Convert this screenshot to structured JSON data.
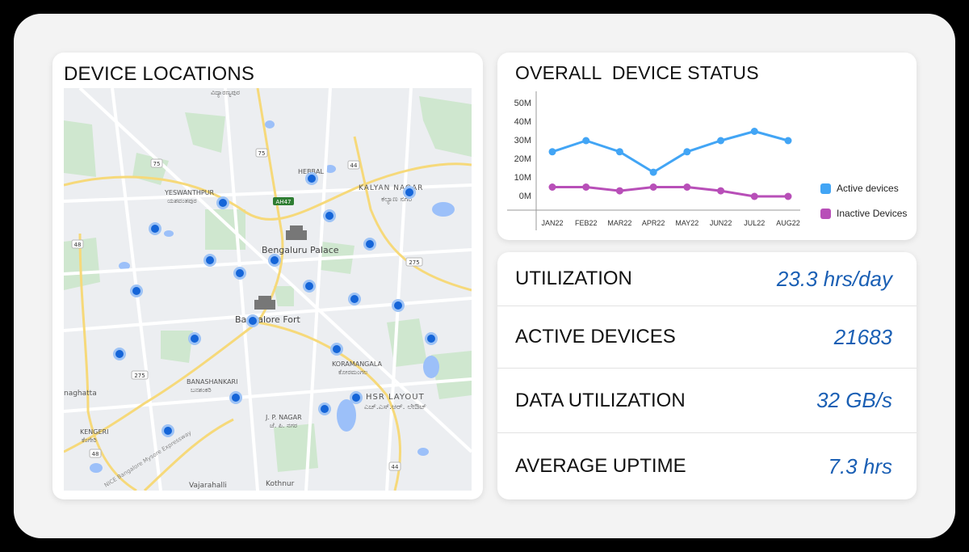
{
  "map": {
    "title": "DEVICE LOCATIONS",
    "labels": {
      "vidyaranyapura": "ವಿದ್ಯಾರಣ್ಯಪುರ",
      "hebbal": "HEBBAL",
      "kalyan_nagar": "KALYAN NAGAR",
      "kalyan_nagar_kn": "ಕಲ್ಯಾಣ ನಗರ",
      "yeshwanthpur": "YESWANTHPUR",
      "yeshwanthpur_kn": "ಯಶವಂತಪುರ",
      "bengaluru_palace": "Bengaluru Palace",
      "bangalore_fort": "Bangalore Fort",
      "koramangala": "KORAMANGALA",
      "koramangala_kn": "ಕೋರಮಂಗಲ",
      "banashankari": "BANASHANKARI",
      "banashankari_kn": "ಬನಶಂಕರಿ",
      "hsr_layout": "HSR LAYOUT",
      "hsr_layout_kn": "ಎಚ್.ಎಸ್.ಆರ್. ಲೇಔಟ್",
      "jp_nagar": "J. P. NAGAR",
      "jp_nagar_kn": "ಜೆ. ಪಿ. ನಗರ",
      "kengeri": "KENGERI",
      "kengeri_kn": "ಕೆಂಗೇರಿ",
      "naghatta": "naghatta",
      "vajarahalli": "Vajarahalli",
      "kothnur": "Kothnur",
      "mysore_expressway": "NICE Bangalore Mysore Expressway",
      "r75": "75",
      "r75b": "75",
      "r44": "44",
      "r44b": "44",
      "ah47": "AH47",
      "r48": "48",
      "r48b": "48",
      "r275": "275",
      "r275b": "275"
    }
  },
  "chart": {
    "title": "OVERALL  DEVICE STATUS",
    "legend": [
      "Active devices",
      "Inactive Devices"
    ]
  },
  "chart_data": {
    "type": "line",
    "title": "OVERALL  DEVICE STATUS",
    "categories": [
      "JAN22",
      "FEB22",
      "MAR22",
      "APR22",
      "MAY22",
      "JUN22",
      "JUL22",
      "AUG22"
    ],
    "y_ticks": [
      "50M",
      "40M",
      "30M",
      "20M",
      "10M",
      "0M"
    ],
    "ylim": [
      0,
      50
    ],
    "series": [
      {
        "name": "Active devices",
        "color": "#42a5f5",
        "values": [
          24,
          30,
          24,
          13,
          24,
          30,
          35,
          30
        ]
      },
      {
        "name": "Inactive Devices",
        "color": "#b84fb8",
        "values": [
          5,
          5,
          3,
          5,
          5,
          3,
          0,
          0
        ]
      }
    ],
    "legend_position": "right"
  },
  "stats": [
    {
      "label": "UTILIZATION",
      "value": "23.3 hrs/day"
    },
    {
      "label": "ACTIVE DEVICES",
      "value": "21683"
    },
    {
      "label": "DATA UTILIZATION",
      "value": "32 GB/s"
    },
    {
      "label": "AVERAGE UPTIME",
      "value": "7.3 hrs"
    }
  ],
  "colors": {
    "accent_blue": "#1a5fb4",
    "marker_blue": "#1565d8",
    "active_line": "#42a5f5",
    "inactive_line": "#b84fb8"
  }
}
